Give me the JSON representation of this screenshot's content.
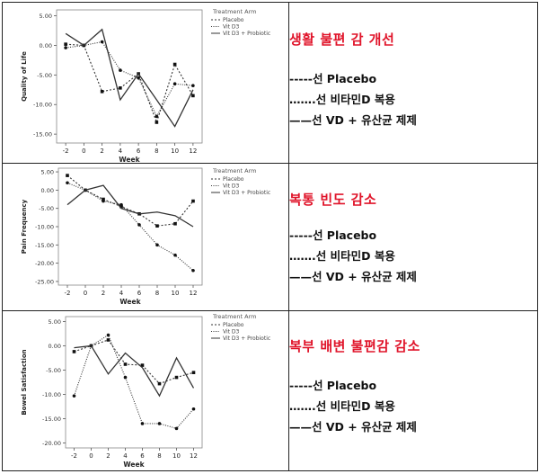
{
  "chart_data": [
    {
      "type": "line",
      "xlabel": "Week",
      "ylabel": "Quality of Life",
      "legend_title": "Treatment Arm",
      "legend_position": "top-right",
      "x": [
        -2,
        0,
        2,
        4,
        6,
        8,
        10,
        12
      ],
      "xticks": [
        "-2",
        "0",
        "2",
        "4",
        "6",
        "8",
        "10",
        "12"
      ],
      "yticks": [
        "5.00",
        "0.00",
        "-5.00",
        "-10.00",
        "-15.00"
      ],
      "ylim": [
        -16.5,
        6
      ],
      "series": [
        {
          "name": "Placebo",
          "dash": "2,2",
          "marker": true,
          "values": [
            0.2,
            0.0,
            -7.8,
            -7.2,
            -4.8,
            -13.0,
            -3.2,
            -8.5
          ]
        },
        {
          "name": "Vit D3",
          "dash": "1,1.5",
          "marker": true,
          "values": [
            -0.4,
            0.0,
            0.6,
            -4.2,
            -5.5,
            -12.0,
            -6.5,
            -6.8
          ]
        },
        {
          "name": "Vit D3 + Probiotic",
          "dash": "",
          "marker": false,
          "values": [
            2.0,
            0.0,
            2.7,
            -9.2,
            -4.8,
            -9.2,
            -13.7,
            -7.5
          ]
        }
      ]
    },
    {
      "type": "line",
      "xlabel": "Week",
      "ylabel": "Pain Frequency",
      "legend_title": "Treatment Arm",
      "legend_position": "top-right",
      "x": [
        -2,
        0,
        2,
        4,
        6,
        8,
        10,
        12
      ],
      "xticks": [
        "-2",
        "0",
        "2",
        "4",
        "6",
        "8",
        "10",
        "12"
      ],
      "yticks": [
        "5.00",
        "0.00",
        "-5.00",
        "-10.00",
        "-15.00",
        "-20.00",
        "-25.00"
      ],
      "ylim": [
        -26,
        6
      ],
      "series": [
        {
          "name": "Placebo",
          "dash": "2,2",
          "marker": true,
          "values": [
            4.0,
            0.0,
            -2.5,
            -4.5,
            -6.5,
            -9.8,
            -9.2,
            -3.0
          ]
        },
        {
          "name": "Vit D3",
          "dash": "1,1.5",
          "marker": true,
          "values": [
            2.0,
            0.0,
            -3.0,
            -4.0,
            -9.5,
            -15.0,
            -17.8,
            -22.0
          ]
        },
        {
          "name": "Vit D3 + Probiotic",
          "dash": "",
          "marker": false,
          "values": [
            -4.0,
            0.0,
            1.3,
            -5.0,
            -6.5,
            -6.0,
            -7.0,
            -10.0
          ]
        }
      ]
    },
    {
      "type": "line",
      "xlabel": "Week",
      "ylabel": "Bowel Satisfaction",
      "legend_title": "Treatment Arm",
      "legend_position": "top-right",
      "x": [
        -2,
        0,
        2,
        4,
        6,
        8,
        10,
        12
      ],
      "xticks": [
        "-2",
        "0",
        "2",
        "4",
        "6",
        "8",
        "10",
        "12"
      ],
      "yticks": [
        "5.00",
        "0.00",
        "-5.00",
        "-10.00",
        "-15.00",
        "-20.00"
      ],
      "ylim": [
        -21,
        6
      ],
      "series": [
        {
          "name": "Placebo",
          "dash": "2,2",
          "marker": true,
          "values": [
            -1.2,
            0.0,
            1.2,
            -3.8,
            -4.0,
            -7.8,
            -6.5,
            -5.5
          ]
        },
        {
          "name": "Vit D3",
          "dash": "1,1.5",
          "marker": true,
          "values": [
            -10.3,
            0.0,
            2.2,
            -6.5,
            -16.0,
            -16.0,
            -17.0,
            -13.0
          ]
        },
        {
          "name": "Vit D3 + Probiotic",
          "dash": "",
          "marker": false,
          "values": [
            -0.4,
            0.0,
            -5.8,
            -1.5,
            -4.5,
            -10.3,
            -2.5,
            -8.7
          ]
        }
      ]
    }
  ],
  "rows": [
    {
      "title": "생활 불편 감 개선",
      "legend": [
        "-----선  Placebo",
        "…….선  비타민D  복용",
        "——선  VD +  유산균  제제"
      ]
    },
    {
      "title": "복통 빈도 감소",
      "legend": [
        "-----선  Placebo",
        "…….선  비타민D  복용",
        "——선  VD +  유산균  제제"
      ]
    },
    {
      "title": "복부 배변 불편감 감소",
      "legend": [
        "-----선  Placebo",
        "…….선  비타민D  복용",
        "——선  VD +  유산균  제제"
      ]
    }
  ]
}
